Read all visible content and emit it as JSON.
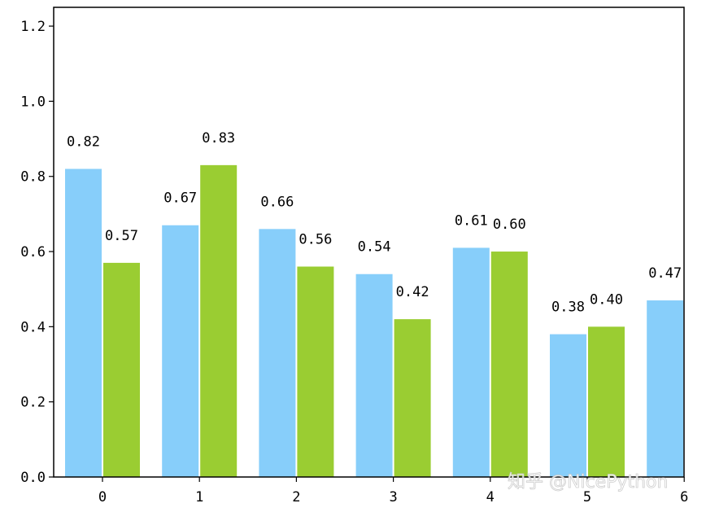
{
  "chart_data": {
    "type": "bar",
    "title": "",
    "xlabel": "",
    "ylabel": "",
    "categories": [
      "0",
      "1",
      "2",
      "3",
      "4",
      "5",
      "6"
    ],
    "series": [
      {
        "values": [
          0.82,
          0.67,
          0.66,
          0.54,
          0.61,
          0.38,
          0.47
        ],
        "labels": [
          "0.82",
          "0.67",
          "0.66",
          "0.54",
          "0.61",
          "0.38",
          "0.47"
        ],
        "color": "#87CEFA"
      },
      {
        "values": [
          0.57,
          0.83,
          0.56,
          0.42,
          0.6,
          0.4,
          null
        ],
        "labels": [
          "0.57",
          "0.83",
          "0.56",
          "0.42",
          "0.60",
          "0.40",
          null
        ],
        "color": "#9ACD32"
      }
    ],
    "ylim": [
      0,
      1.25
    ],
    "yticks": [
      "0.0",
      "0.2",
      "0.4",
      "0.6",
      "0.8",
      "1.0",
      "1.2"
    ],
    "xticks": [
      "0",
      "1",
      "2",
      "3",
      "4",
      "5",
      "6"
    ],
    "grid": false,
    "legend": "none"
  },
  "watermark": "知乎 @NicePython"
}
